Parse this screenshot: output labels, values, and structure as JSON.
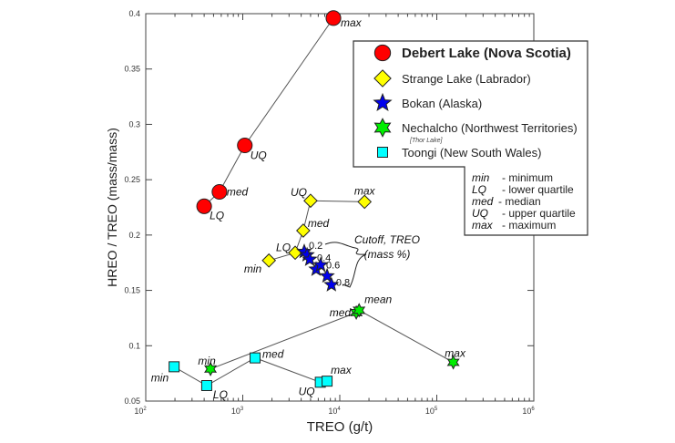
{
  "chart_data": {
    "type": "scatter",
    "xlabel": "TREO (g/t)",
    "ylabel": "HREO / TREO (mass/mass)",
    "xscale": "log",
    "xlim": [
      100,
      1000000
    ],
    "ylim": [
      0.05,
      0.4
    ],
    "xticks": [
      {
        "base": "10",
        "exp": "2"
      },
      {
        "base": "10",
        "exp": "3"
      },
      {
        "base": "10",
        "exp": "4"
      },
      {
        "base": "10",
        "exp": "5"
      },
      {
        "base": "10",
        "exp": "6"
      }
    ],
    "yticks": [
      "0.05",
      "0.1",
      "0.15",
      "0.2",
      "0.25",
      "0.3",
      "0.35",
      "0.4"
    ],
    "series": [
      {
        "name": "Debert Lake (Nova Scotia)",
        "marker": "circle",
        "color": "#ff0000",
        "bold": true,
        "points": [
          {
            "x": 400,
            "y": 0.226,
            "label": "LQ"
          },
          {
            "x": 575,
            "y": 0.239,
            "label": "med"
          },
          {
            "x": 1050,
            "y": 0.281,
            "label": "UQ"
          },
          {
            "x": 8600,
            "y": 0.396,
            "label": "max"
          }
        ]
      },
      {
        "name": "Strange Lake (Labrador)",
        "marker": "diamond",
        "color": "#ffff00",
        "points": [
          {
            "x": 1860,
            "y": 0.177,
            "label": "min"
          },
          {
            "x": 3470,
            "y": 0.184,
            "label": "LQ"
          },
          {
            "x": 4200,
            "y": 0.204,
            "label": "med"
          },
          {
            "x": 5000,
            "y": 0.231,
            "label": "UQ"
          },
          {
            "x": 18000,
            "y": 0.23,
            "label": "max"
          }
        ]
      },
      {
        "name": "Bokan (Alaska)",
        "marker": "star5",
        "color": "#0000ee",
        "points": [
          {
            "x": 4300,
            "y": 0.185,
            "label": "0.2"
          },
          {
            "x": 4600,
            "y": 0.182,
            "label": ""
          },
          {
            "x": 4900,
            "y": 0.178,
            "label": "0.4"
          },
          {
            "x": 5700,
            "y": 0.169,
            "label": ""
          },
          {
            "x": 6350,
            "y": 0.173,
            "label": "0.6"
          },
          {
            "x": 7400,
            "y": 0.163,
            "label": ""
          },
          {
            "x": 8200,
            "y": 0.155,
            "label": "0.8"
          }
        ]
      },
      {
        "name": "Nechalcho (Northwest Territories)",
        "note": "[Thor Lake]",
        "marker": "star6",
        "color": "#00ee00",
        "points": [
          {
            "x": 465,
            "y": 0.079,
            "label": "min"
          },
          {
            "x": 14800,
            "y": 0.13,
            "label": "med"
          },
          {
            "x": 15800,
            "y": 0.132,
            "label": "mean"
          },
          {
            "x": 148000,
            "y": 0.085,
            "label": "max"
          }
        ]
      },
      {
        "name": "Toongi (New South Wales)",
        "marker": "square",
        "color": "#00ffff",
        "points": [
          {
            "x": 196,
            "y": 0.081,
            "label": "min"
          },
          {
            "x": 425,
            "y": 0.064,
            "label": "LQ"
          },
          {
            "x": 1340,
            "y": 0.089,
            "label": "med"
          },
          {
            "x": 6300,
            "y": 0.067,
            "label": "UQ"
          },
          {
            "x": 7400,
            "y": 0.068,
            "label": "max"
          }
        ]
      }
    ],
    "annotation": [
      "Cutoff, TREO",
      "(mass %)"
    ],
    "key": [
      {
        "abbr": "min",
        "text": "- minimum"
      },
      {
        "abbr": "LQ",
        "text": "- lower quartile"
      },
      {
        "abbr": "med",
        "text": "- median"
      },
      {
        "abbr": "UQ",
        "text": "- upper quartile"
      },
      {
        "abbr": "max",
        "text": "- maximum"
      }
    ],
    "legend_position": "top-right",
    "grid": false
  }
}
